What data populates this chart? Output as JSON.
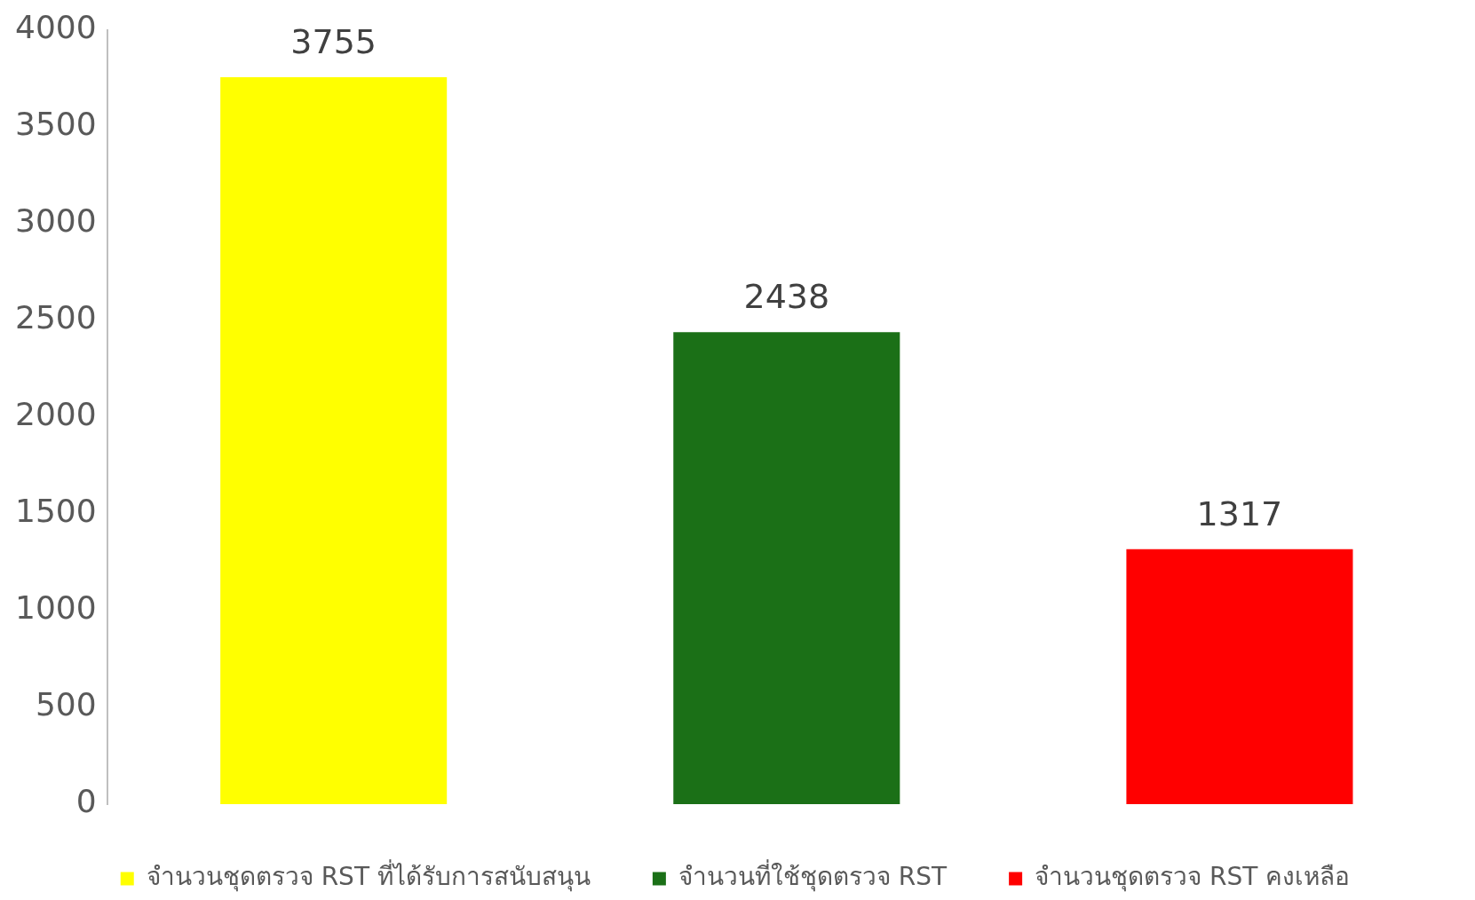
{
  "chart_data": {
    "type": "bar",
    "categories": [
      null,
      null,
      null
    ],
    "stacked": true,
    "series": [
      {
        "name": "จำนวนชุดตรวจ RST ที่ได้รับการสนับสนุน",
        "color": "#ffff00",
        "values": [
          3755,
          null,
          null
        ]
      },
      {
        "name": "จำนวนที่ใช้ชุดตรวจ RST",
        "color": "#1b7017",
        "values": [
          null,
          2438,
          null
        ]
      },
      {
        "name": "จำนวนชุดตรวจ RST คงเหลือ",
        "color": "#ff0000",
        "values": [
          null,
          null,
          1317
        ]
      }
    ],
    "ylim": [
      0,
      4000
    ],
    "yticks": [
      0,
      500,
      1000,
      1500,
      2000,
      2500,
      3000,
      3500,
      4000
    ],
    "grid": false,
    "legend": "bottom",
    "data_labels": true
  }
}
